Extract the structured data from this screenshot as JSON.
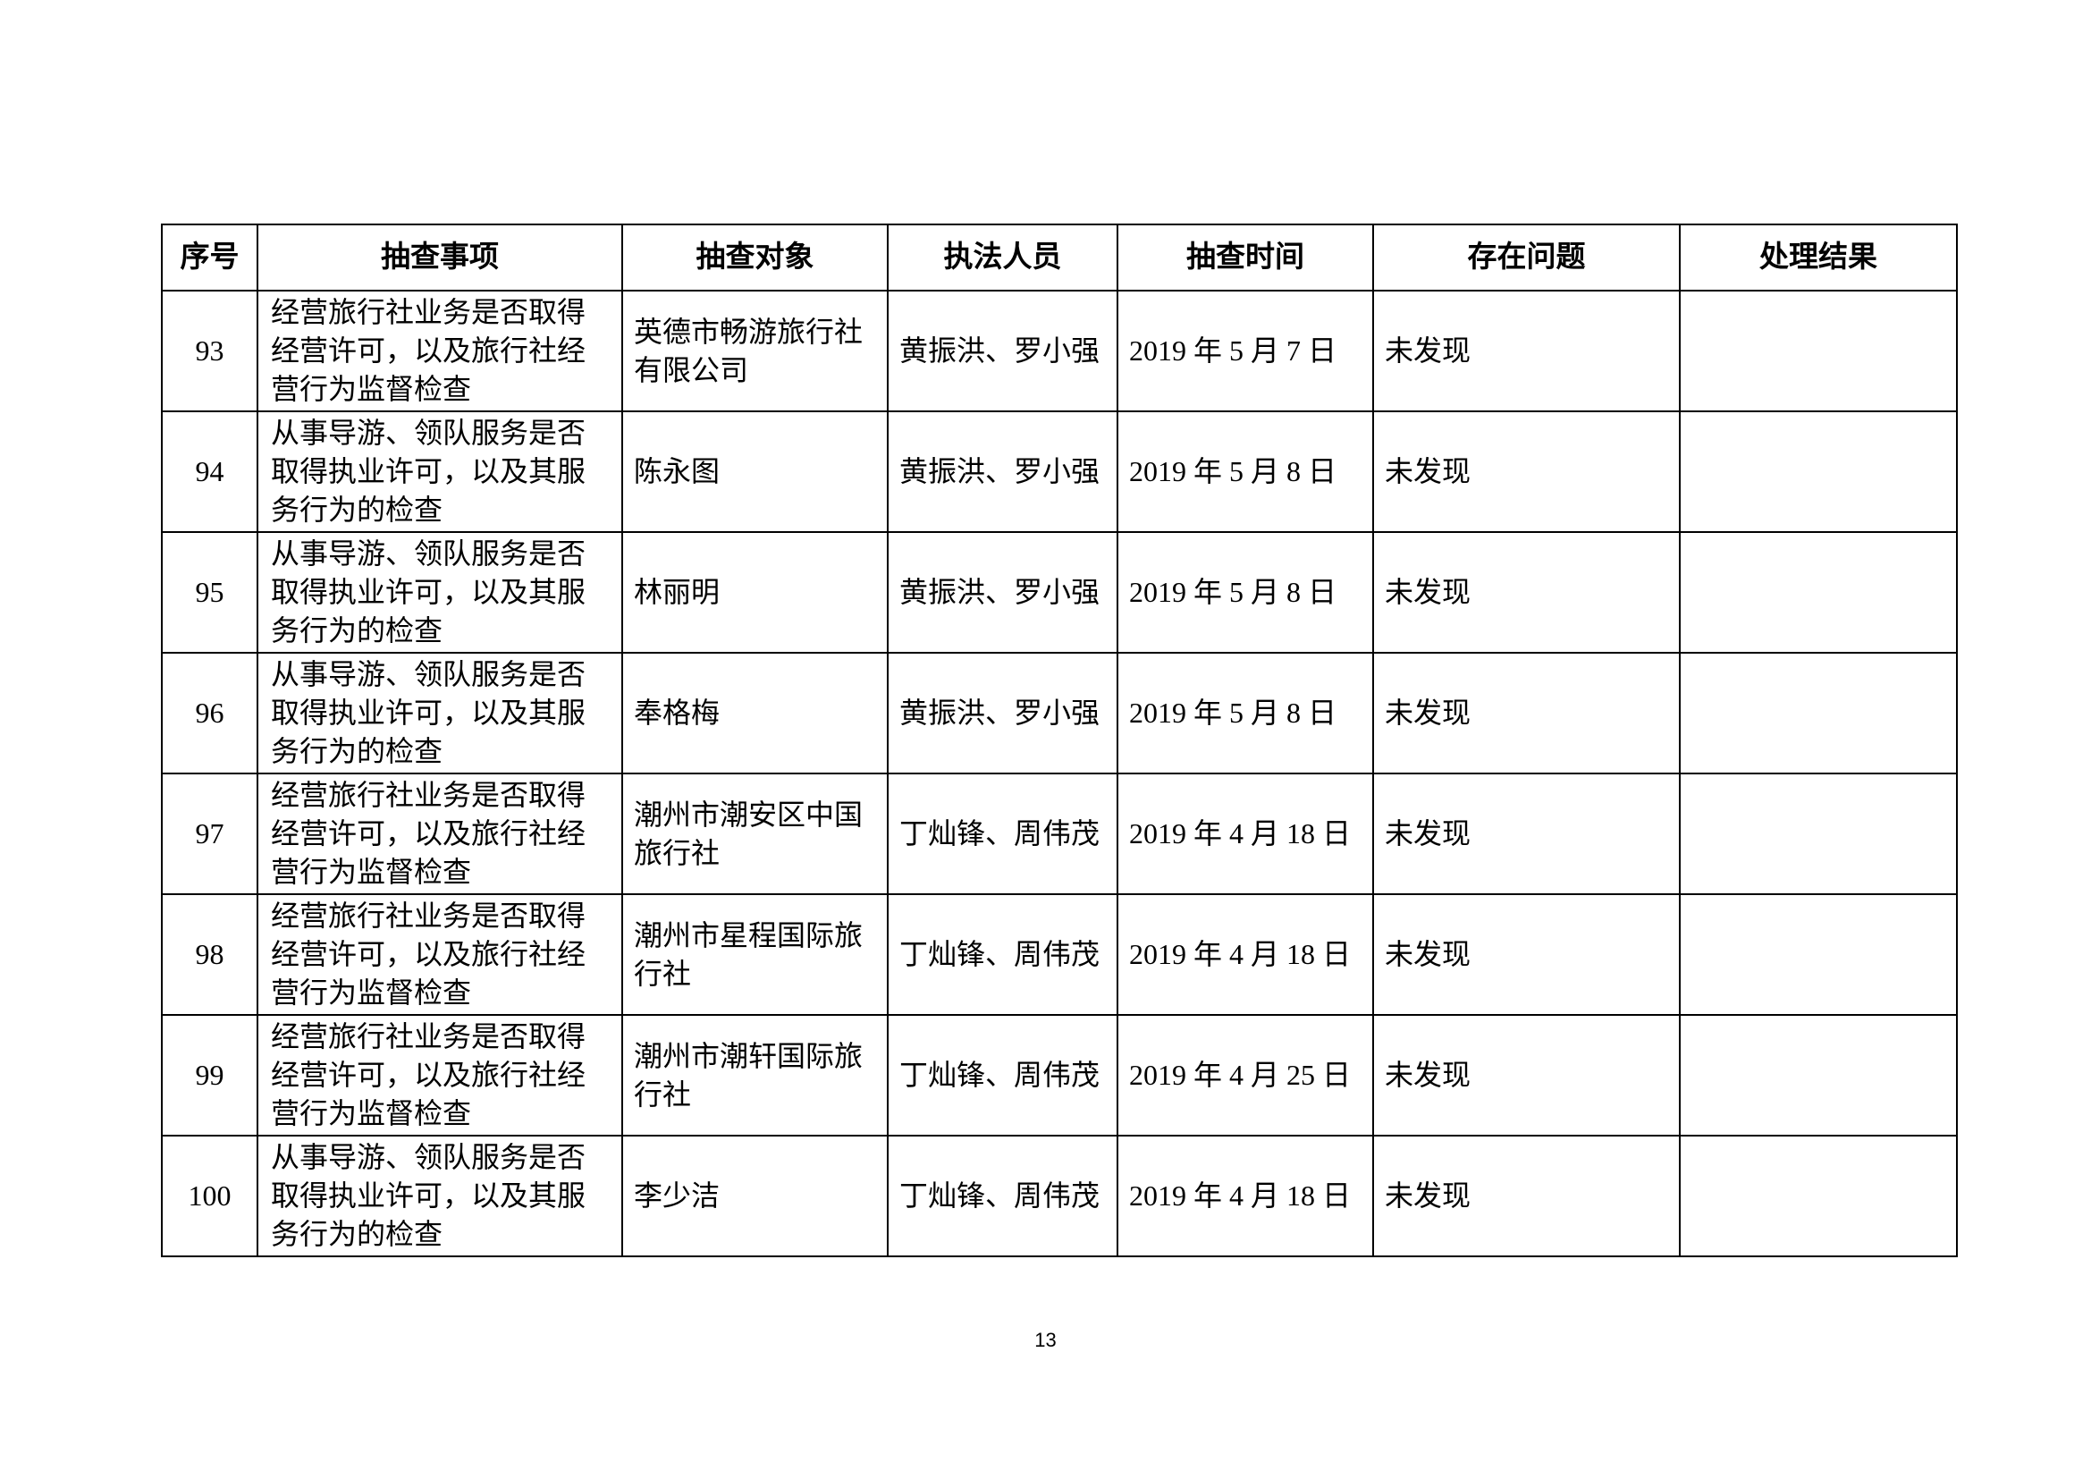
{
  "page_number": "13",
  "table": {
    "headers": [
      "序号",
      "抽查事项",
      "抽查对象",
      "执法人员",
      "抽查时间",
      "存在问题",
      "处理结果"
    ],
    "rows": [
      {
        "no": "93",
        "item": "经营旅行社业务是否取得\n经营许可，以及旅行社经\n营行为监督检查",
        "target": "英德市畅游旅行社\n有限公司",
        "officers": "黄振洪、罗小强",
        "date": "2019 年 5 月 7 日",
        "problem": "未发现",
        "result": ""
      },
      {
        "no": "94",
        "item": "从事导游、领队服务是否\n取得执业许可，以及其服\n务行为的检查",
        "target": "陈永图",
        "officers": "黄振洪、罗小强",
        "date": "2019 年 5 月 8 日",
        "problem": "未发现",
        "result": ""
      },
      {
        "no": "95",
        "item": "从事导游、领队服务是否\n取得执业许可，以及其服\n务行为的检查",
        "target": "林丽明",
        "officers": "黄振洪、罗小强",
        "date": "2019 年 5 月 8 日",
        "problem": "未发现",
        "result": ""
      },
      {
        "no": "96",
        "item": "从事导游、领队服务是否\n取得执业许可，以及其服\n务行为的检查",
        "target": "奉格梅",
        "officers": "黄振洪、罗小强",
        "date": "2019 年 5 月 8 日",
        "problem": "未发现",
        "result": ""
      },
      {
        "no": "97",
        "item": "经营旅行社业务是否取得\n经营许可，以及旅行社经\n营行为监督检查",
        "target": "潮州市潮安区中国\n旅行社",
        "officers": "丁灿锋、周伟茂",
        "date": "2019 年 4 月 18 日",
        "problem": "未发现",
        "result": ""
      },
      {
        "no": "98",
        "item": "经营旅行社业务是否取得\n经营许可，以及旅行社经\n营行为监督检查",
        "target": "潮州市星程国际旅\n行社",
        "officers": "丁灿锋、周伟茂",
        "date": "2019 年 4 月 18 日",
        "problem": "未发现",
        "result": ""
      },
      {
        "no": "99",
        "item": "经营旅行社业务是否取得\n经营许可，以及旅行社经\n营行为监督检查",
        "target": "潮州市潮轩国际旅\n行社",
        "officers": "丁灿锋、周伟茂",
        "date": "2019 年 4 月 25 日",
        "problem": "未发现",
        "result": ""
      },
      {
        "no": "100",
        "item": "从事导游、领队服务是否\n取得执业许可，以及其服\n务行为的检查",
        "target": "李少洁",
        "officers": "丁灿锋、周伟茂",
        "date": "2019 年 4 月 18 日",
        "problem": "未发现",
        "result": ""
      }
    ]
  }
}
